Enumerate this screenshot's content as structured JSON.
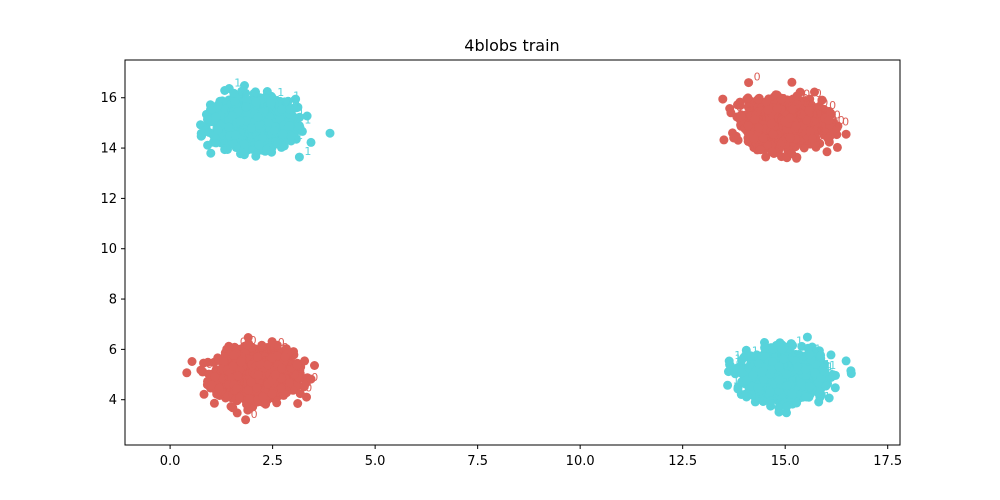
{
  "chart_data": {
    "type": "scatter",
    "title": "4blobs train",
    "xlabel": "",
    "ylabel": "",
    "xlim": [
      -1.1,
      17.8
    ],
    "ylim": [
      2.2,
      17.5
    ],
    "xticks": [
      0.0,
      2.5,
      5.0,
      7.5,
      10.0,
      12.5,
      15.0,
      17.5
    ],
    "xtick_labels": [
      "0.0",
      "2.5",
      "5.0",
      "7.5",
      "10.0",
      "12.5",
      "15.0",
      "17.5"
    ],
    "yticks": [
      4,
      6,
      8,
      10,
      12,
      14,
      16
    ],
    "ytick_labels": [
      "4",
      "6",
      "8",
      "10",
      "12",
      "14",
      "16"
    ],
    "grid": false,
    "legend": "none",
    "point_text_labels_note": "each point drawn as a dot with its class label text beside it",
    "series": [
      {
        "name": "0",
        "color": "#db5f57",
        "blobs": [
          {
            "center": [
              2.1,
              5.0
            ],
            "x_spread": 0.45,
            "y_spread": 0.45,
            "x_range": [
              0.3,
              3.7
            ],
            "y_range": [
              3.2,
              6.9
            ]
          },
          {
            "center": [
              15.0,
              15.0
            ],
            "x_spread": 0.45,
            "y_spread": 0.45,
            "x_range": [
              13.3,
              16.6
            ],
            "y_range": [
              13.2,
              17.0
            ]
          }
        ]
      },
      {
        "name": "1",
        "color": "#57d3db",
        "blobs": [
          {
            "center": [
              2.0,
              15.0
            ],
            "x_spread": 0.45,
            "y_spread": 0.45,
            "x_range": [
              -0.2,
              3.9
            ],
            "y_range": [
              12.9,
              17.0
            ]
          },
          {
            "center": [
              15.0,
              5.0
            ],
            "x_spread": 0.45,
            "y_spread": 0.45,
            "x_range": [
              13.0,
              16.9
            ],
            "y_range": [
              2.9,
              7.0
            ]
          }
        ]
      }
    ]
  }
}
